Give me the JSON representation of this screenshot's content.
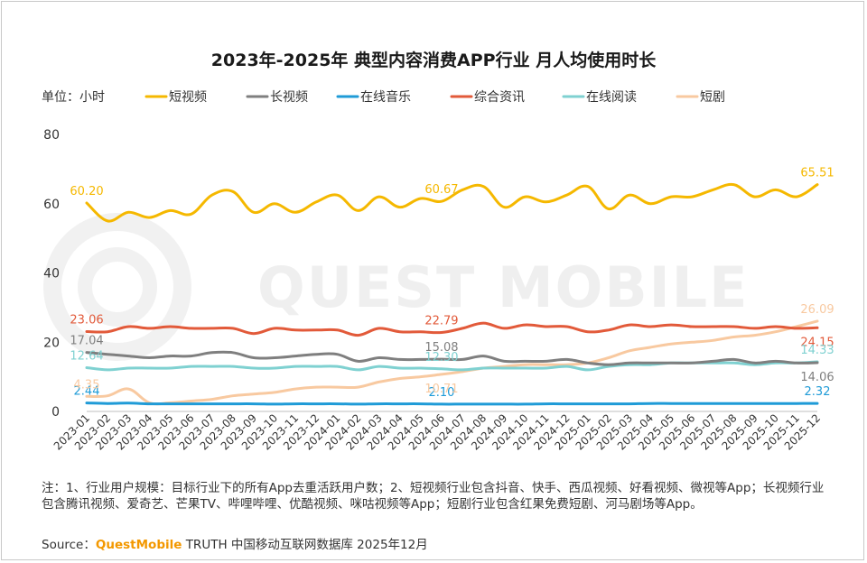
{
  "chart_data": {
    "type": "line",
    "title": "2023年-2025年 典型内容消费APP行业 月人均使用时长",
    "unit_label": "单位：小时",
    "ylim": [
      0,
      80
    ],
    "y_ticks": [
      "0",
      "20",
      "40",
      "60",
      "80"
    ],
    "grid": false,
    "legend_position": "top",
    "categories": [
      "2023-01",
      "2023-02",
      "2023-03",
      "2023-04",
      "2023-05",
      "2023-06",
      "2023-07",
      "2023-08",
      "2023-09",
      "2023-10",
      "2023-11",
      "2023-12",
      "2024-01",
      "2024-02",
      "2024-03",
      "2024-04",
      "2024-05",
      "2024-06",
      "2024-07",
      "2024-08",
      "2024-09",
      "2024-10",
      "2024-11",
      "2024-12",
      "2025-01",
      "2025-02",
      "2025-03",
      "2025-04",
      "2025-05",
      "2025-06",
      "2025-07",
      "2025-08",
      "2025-09",
      "2025-10",
      "2025-11",
      "2025-12"
    ],
    "series": [
      {
        "name": "短视频",
        "color": "#f5b800",
        "values": [
          60.2,
          55.0,
          57.5,
          56.0,
          58.0,
          57.0,
          62.5,
          63.5,
          57.5,
          60.0,
          57.5,
          60.5,
          62.5,
          58.0,
          62.0,
          59.0,
          61.5,
          60.67,
          64.0,
          65.0,
          59.0,
          62.0,
          60.5,
          62.5,
          65.0,
          58.5,
          62.5,
          60.0,
          62.0,
          62.0,
          64.0,
          65.5,
          62.0,
          64.0,
          62.0,
          65.51
        ],
        "labels": [
          {
            "i": 0,
            "text": "60.20",
            "pos": "above"
          },
          {
            "i": 17,
            "text": "60.67",
            "pos": "above"
          },
          {
            "i": 35,
            "text": "65.51",
            "pos": "above"
          }
        ]
      },
      {
        "name": "长视频",
        "color": "#7f7f7f",
        "values": [
          17.04,
          16.5,
          16.0,
          15.5,
          16.0,
          16.0,
          17.0,
          17.0,
          15.5,
          15.5,
          16.0,
          16.5,
          16.5,
          14.5,
          15.5,
          15.0,
          15.0,
          15.08,
          15.0,
          16.0,
          14.5,
          14.5,
          14.5,
          15.0,
          14.0,
          13.5,
          14.0,
          14.0,
          14.0,
          14.0,
          14.5,
          15.0,
          14.0,
          14.5,
          14.0,
          14.06
        ],
        "labels": [
          {
            "i": 0,
            "text": "17.04",
            "pos": "above"
          },
          {
            "i": 17,
            "text": "15.08",
            "pos": "above"
          },
          {
            "i": 35,
            "text": "14.06",
            "pos": "below"
          }
        ]
      },
      {
        "name": "在线音乐",
        "color": "#1f9bd7",
        "values": [
          2.44,
          2.3,
          2.4,
          2.2,
          2.2,
          2.2,
          2.2,
          2.2,
          2.2,
          2.1,
          2.2,
          2.2,
          2.2,
          2.1,
          2.2,
          2.2,
          2.2,
          2.1,
          2.1,
          2.1,
          2.1,
          2.1,
          2.2,
          2.2,
          2.2,
          2.2,
          2.2,
          2.3,
          2.3,
          2.3,
          2.3,
          2.3,
          2.3,
          2.3,
          2.3,
          2.32
        ],
        "labels": [
          {
            "i": 0,
            "text": "2.44",
            "pos": "above"
          },
          {
            "i": 17,
            "text": "2.10",
            "pos": "above"
          },
          {
            "i": 35,
            "text": "2.32",
            "pos": "above"
          }
        ]
      },
      {
        "name": "综合资讯",
        "color": "#e25a3a",
        "values": [
          23.06,
          23.0,
          24.5,
          24.0,
          24.5,
          24.0,
          24.0,
          24.0,
          22.5,
          24.0,
          23.5,
          23.5,
          23.5,
          22.0,
          24.0,
          23.0,
          23.0,
          22.79,
          24.0,
          25.5,
          24.0,
          25.0,
          24.5,
          24.5,
          23.0,
          23.5,
          25.0,
          24.5,
          25.0,
          24.5,
          24.5,
          24.5,
          24.0,
          24.5,
          24.0,
          24.15
        ],
        "labels": [
          {
            "i": 0,
            "text": "23.06",
            "pos": "above"
          },
          {
            "i": 17,
            "text": "22.79",
            "pos": "above"
          },
          {
            "i": 35,
            "text": "24.15",
            "pos": "below"
          }
        ]
      },
      {
        "name": "在线阅读",
        "color": "#7fd1d1",
        "values": [
          12.64,
          12.0,
          12.5,
          12.5,
          12.5,
          13.0,
          13.0,
          13.0,
          12.5,
          12.5,
          13.0,
          13.0,
          13.0,
          12.0,
          13.0,
          12.5,
          12.5,
          12.3,
          12.0,
          12.5,
          12.5,
          12.5,
          12.5,
          13.0,
          12.0,
          13.0,
          13.5,
          13.5,
          14.0,
          14.0,
          14.0,
          14.0,
          13.5,
          14.0,
          14.0,
          14.33
        ],
        "labels": [
          {
            "i": 0,
            "text": "12.64",
            "pos": "above"
          },
          {
            "i": 17,
            "text": "12.30",
            "pos": "above"
          },
          {
            "i": 35,
            "text": "14.33",
            "pos": "above"
          }
        ]
      },
      {
        "name": "短剧",
        "color": "#f8c9a0",
        "values": [
          4.35,
          4.5,
          6.5,
          2.5,
          2.5,
          3.0,
          3.5,
          4.5,
          5.0,
          5.5,
          6.5,
          7.0,
          7.0,
          7.0,
          8.5,
          9.5,
          10.0,
          10.71,
          11.5,
          12.5,
          13.0,
          13.5,
          13.5,
          13.5,
          14.0,
          15.5,
          17.5,
          18.5,
          19.5,
          20.0,
          20.5,
          21.5,
          22.0,
          23.0,
          24.5,
          26.09
        ],
        "labels": [
          {
            "i": 0,
            "text": "4.35",
            "pos": "above"
          },
          {
            "i": 17,
            "text": "10.71",
            "pos": "below"
          },
          {
            "i": 35,
            "text": "26.09",
            "pos": "above"
          }
        ]
      }
    ]
  },
  "footnote": "注：1、行业用户规模：目标行业下的所有App去重活跃用户数；2、短视频行业包含抖音、快手、西瓜视频、好看视频、微视等App；长视频行业包含腾讯视频、爱奇艺、芒果TV、哔哩哔哩、优酷视频、咪咕视频等App；短剧行业包含红果免费短剧、河马剧场等App。",
  "source": {
    "prefix": "Source：",
    "brand": "QuestMobile",
    "suffix": "TRUTH 中国移动互联网数据库 2025年12月"
  },
  "watermark": "QUEST MOBILE"
}
